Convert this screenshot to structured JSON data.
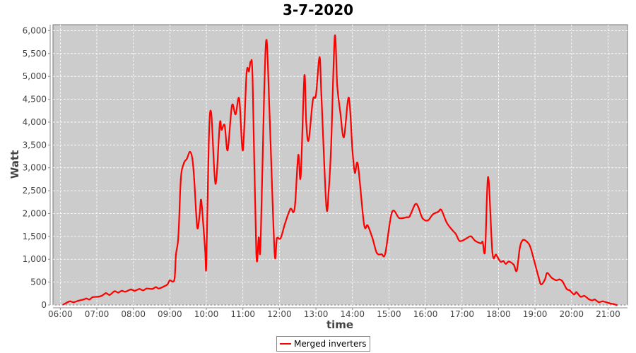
{
  "chart_data": {
    "type": "line",
    "title": "3-7-2020",
    "xlabel": "time",
    "ylabel": "Watt",
    "xlim": [
      "05:48",
      "21:32"
    ],
    "ylim": [
      0,
      6130
    ],
    "x_ticks": [
      "06:00",
      "07:00",
      "08:00",
      "09:00",
      "10:00",
      "11:00",
      "12:00",
      "13:00",
      "14:00",
      "15:00",
      "16:00",
      "17:00",
      "18:00",
      "19:00",
      "20:00",
      "21:00"
    ],
    "y_ticks": [
      0,
      500,
      1000,
      1500,
      2000,
      2500,
      3000,
      3500,
      4000,
      4500,
      5000,
      5500,
      6000
    ],
    "y_tick_labels": [
      "0",
      "500",
      "1,000",
      "1,500",
      "2,000",
      "2,500",
      "3,000",
      "3,500",
      "4,000",
      "4,500",
      "5,000",
      "5,500",
      "6,000"
    ],
    "grid": true,
    "legend_position": "bottom",
    "colors": {
      "plot_bg": "#cccccc",
      "series": "#ff0000"
    },
    "series": [
      {
        "name": "Merged inverters",
        "x": [
          "06:05",
          "06:12",
          "06:16",
          "06:22",
          "06:29",
          "06:38",
          "06:43",
          "06:48",
          "06:53",
          "07:02",
          "07:08",
          "07:15",
          "07:21",
          "07:29",
          "07:35",
          "07:41",
          "07:47",
          "07:56",
          "08:02",
          "08:10",
          "08:16",
          "08:22",
          "08:31",
          "08:37",
          "08:42",
          "08:51",
          "08:56",
          "09:00",
          "09:05",
          "09:08",
          "09:10",
          "09:14",
          "09:18",
          "09:23",
          "09:28",
          "09:33",
          "09:37",
          "09:40",
          "09:45",
          "09:49",
          "09:51",
          "09:53",
          "09:58",
          "10:00",
          "10:04",
          "10:08",
          "10:15",
          "10:22",
          "10:25",
          "10:30",
          "10:35",
          "10:42",
          "10:48",
          "10:54",
          "11:00",
          "11:06",
          "11:10",
          "11:13",
          "11:16",
          "11:22",
          "11:26",
          "11:29",
          "11:35",
          "11:39",
          "11:44",
          "11:52",
          "11:56",
          "12:02",
          "12:09",
          "12:18",
          "12:23",
          "12:26",
          "12:31",
          "12:35",
          "12:41",
          "12:44",
          "12:48",
          "12:55",
          "13:00",
          "13:06",
          "13:09",
          "13:17",
          "13:21",
          "13:25",
          "13:31",
          "13:35",
          "13:40",
          "13:46",
          "13:54",
          "14:00",
          "14:04",
          "14:09",
          "14:19",
          "14:25",
          "14:33",
          "14:40",
          "14:48",
          "14:54",
          "15:05",
          "15:17",
          "15:29",
          "15:34",
          "15:43",
          "15:48",
          "15:55",
          "16:04",
          "16:12",
          "16:21",
          "16:26",
          "16:35",
          "16:44",
          "16:50",
          "16:56",
          "17:04",
          "17:10",
          "17:15",
          "17:22",
          "17:31",
          "17:34",
          "17:38",
          "17:43",
          "17:50",
          "17:56",
          "18:03",
          "18:08",
          "18:12",
          "18:17",
          "18:25",
          "18:30",
          "18:35",
          "18:40",
          "18:47",
          "18:52",
          "18:57",
          "19:06",
          "19:10",
          "19:16",
          "19:20",
          "19:27",
          "19:35",
          "19:40",
          "19:45",
          "19:52",
          "19:57",
          "20:04",
          "20:08",
          "20:15",
          "20:21",
          "20:28",
          "20:34",
          "20:38",
          "20:45",
          "20:51",
          "21:02",
          "21:09",
          "21:14"
        ],
        "values": [
          10,
          60,
          80,
          60,
          90,
          120,
          140,
          120,
          170,
          180,
          200,
          260,
          220,
          300,
          270,
          310,
          290,
          340,
          310,
          350,
          320,
          360,
          350,
          390,
          360,
          410,
          450,
          540,
          510,
          600,
          1100,
          1500,
          2750,
          3100,
          3200,
          3350,
          3200,
          2750,
          1700,
          2000,
          2300,
          2100,
          1200,
          900,
          3600,
          4200,
          2650,
          3960,
          3830,
          3930,
          3385,
          4360,
          4170,
          4510,
          3385,
          5060,
          5110,
          5320,
          4900,
          1140,
          1480,
          1300,
          4640,
          5790,
          4120,
          1165,
          1460,
          1460,
          1770,
          2100,
          2030,
          2240,
          3280,
          2810,
          5005,
          4010,
          3600,
          4480,
          4590,
          5420,
          4590,
          2180,
          2500,
          3490,
          5870,
          4800,
          4220,
          3670,
          4535,
          3385,
          2890,
          3070,
          1770,
          1740,
          1460,
          1140,
          1110,
          1130,
          2030,
          1900,
          1920,
          1940,
          2200,
          2150,
          1900,
          1850,
          1980,
          2040,
          2080,
          1800,
          1640,
          1550,
          1400,
          1430,
          1480,
          1500,
          1400,
          1350,
          1380,
          1200,
          2800,
          1150,
          1100,
          950,
          960,
          900,
          950,
          880,
          750,
          1250,
          1420,
          1380,
          1280,
          1050,
          600,
          450,
          550,
          700,
          600,
          540,
          560,
          520,
          350,
          320,
          230,
          280,
          180,
          200,
          130,
          100,
          120,
          60,
          80,
          40,
          20,
          0
        ]
      }
    ]
  }
}
